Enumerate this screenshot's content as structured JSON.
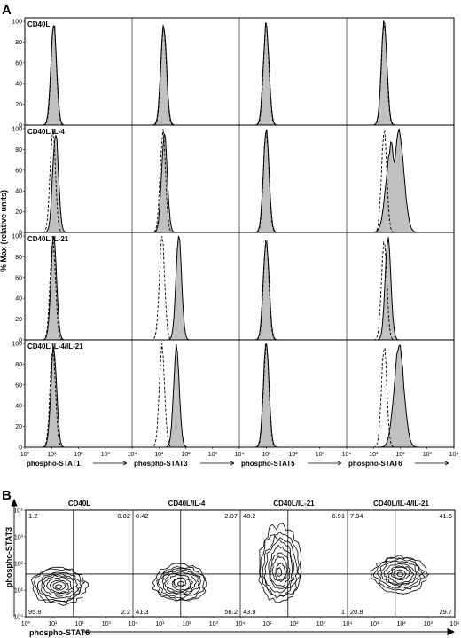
{
  "panels": {
    "A": {
      "label": "A",
      "ylabel": "% Max (relative units)",
      "y_ticks": [
        "0",
        "20",
        "40",
        "60",
        "80",
        "100"
      ],
      "x_ticks": [
        "10⁰",
        "10¹",
        "10²",
        "10³",
        "10⁴"
      ],
      "rows": [
        "CD40L",
        "CD40L/IL-4",
        "CD40L/IL-21",
        "CD40L/IL-4/IL-21"
      ],
      "columns": [
        "phospho-STAT1",
        "phospho-STAT3",
        "phospho-STAT5",
        "phospho-STAT6"
      ]
    },
    "B": {
      "label": "B",
      "ylabel": "phospho-STAT3",
      "xlabel": "phospho-STAT6",
      "x_ticks": [
        "10⁰",
        "10¹",
        "10²",
        "10³",
        "10⁴"
      ],
      "y_ticks": [
        "10⁰",
        "10¹",
        "10²",
        "10³",
        "10⁴"
      ],
      "plots": [
        {
          "title": "CD40L",
          "quadrants": {
            "ul": "1.2",
            "ur": "0.82",
            "ll": "95.8",
            "lr": "2.2"
          }
        },
        {
          "title": "CD40L/IL-4",
          "quadrants": {
            "ul": "0.42",
            "ur": "2.07",
            "ll": "41.3",
            "lr": "56.2"
          }
        },
        {
          "title": "CD40L/IL-21",
          "quadrants": {
            "ul": "48.2",
            "ur": "6.91",
            "ll": "43.9",
            "lr": "1"
          }
        },
        {
          "title": "CD40L/IL-4/IL-21",
          "quadrants": {
            "ul": "7.94",
            "ur": "41.6",
            "ll": "20.8",
            "lr": "29.7"
          }
        }
      ]
    }
  },
  "chart_data": [
    {
      "type": "area",
      "x_scale": "log",
      "xlim": [
        1,
        10000
      ],
      "ylim": [
        0,
        100
      ],
      "grid": false,
      "histograms": [
        {
          "row": "CD40L",
          "column": "phospho-STAT1",
          "filled_peaks": [
            12
          ],
          "dashed_peak": 12
        },
        {
          "row": "CD40L",
          "column": "phospho-STAT3",
          "filled_peaks": [
            15
          ],
          "dashed_peak": 15
        },
        {
          "row": "CD40L",
          "column": "phospho-STAT5",
          "filled_peaks": [
            10
          ],
          "dashed_peak": 10
        },
        {
          "row": "CD40L",
          "column": "phospho-STAT6",
          "filled_peaks": [
            25
          ],
          "dashed_peak": 25
        },
        {
          "row": "CD40L/IL-4",
          "column": "phospho-STAT1",
          "filled_peaks": [
            14
          ],
          "dashed_peak": 11
        },
        {
          "row": "CD40L/IL-4",
          "column": "phospho-STAT3",
          "filled_peaks": [
            16
          ],
          "dashed_peak": 14
        },
        {
          "row": "CD40L/IL-4",
          "column": "phospho-STAT5",
          "filled_peaks": [
            10
          ],
          "dashed_peak": 10
        },
        {
          "row": "CD40L/IL-4",
          "column": "phospho-STAT6",
          "filled_peaks": [
            45,
            90
          ],
          "dashed_peak": 25
        },
        {
          "row": "CD40L/IL-21",
          "column": "phospho-STAT1",
          "filled_peaks": [
            12
          ],
          "dashed_peak": 11
        },
        {
          "row": "CD40L/IL-21",
          "column": "phospho-STAT3",
          "filled_peaks": [
            55
          ],
          "dashed_peak": 13
        },
        {
          "row": "CD40L/IL-21",
          "column": "phospho-STAT5",
          "filled_peaks": [
            10
          ],
          "dashed_peak": 10
        },
        {
          "row": "CD40L/IL-21",
          "column": "phospho-STAT6",
          "filled_peaks": [
            35
          ],
          "dashed_peak": 25
        },
        {
          "row": "CD40L/IL-4/IL-21",
          "column": "phospho-STAT1",
          "filled_peaks": [
            12
          ],
          "dashed_peak": 11
        },
        {
          "row": "CD40L/IL-4/IL-21",
          "column": "phospho-STAT3",
          "filled_peaks": [
            45
          ],
          "dashed_peak": 13
        },
        {
          "row": "CD40L/IL-4/IL-21",
          "column": "phospho-STAT5",
          "filled_peaks": [
            10
          ],
          "dashed_peak": 10
        },
        {
          "row": "CD40L/IL-4/IL-21",
          "column": "phospho-STAT6",
          "filled_peaks": [
            90
          ],
          "dashed_peak": 25
        }
      ]
    },
    {
      "type": "scatter",
      "x_scale": "log",
      "y_scale": "log",
      "xlim": [
        1,
        10000
      ],
      "ylim": [
        1,
        10000
      ],
      "quadrant_gate": {
        "x": 60,
        "y": 40
      },
      "contour_centers": [
        {
          "title": "CD40L",
          "x": 18,
          "y": 14
        },
        {
          "title": "CD40L/IL-4",
          "x": 60,
          "y": 18
        },
        {
          "title": "CD40L/IL-21",
          "x": 30,
          "y": 45
        },
        {
          "title": "CD40L/IL-4/IL-21",
          "x": 90,
          "y": 40
        }
      ]
    }
  ]
}
